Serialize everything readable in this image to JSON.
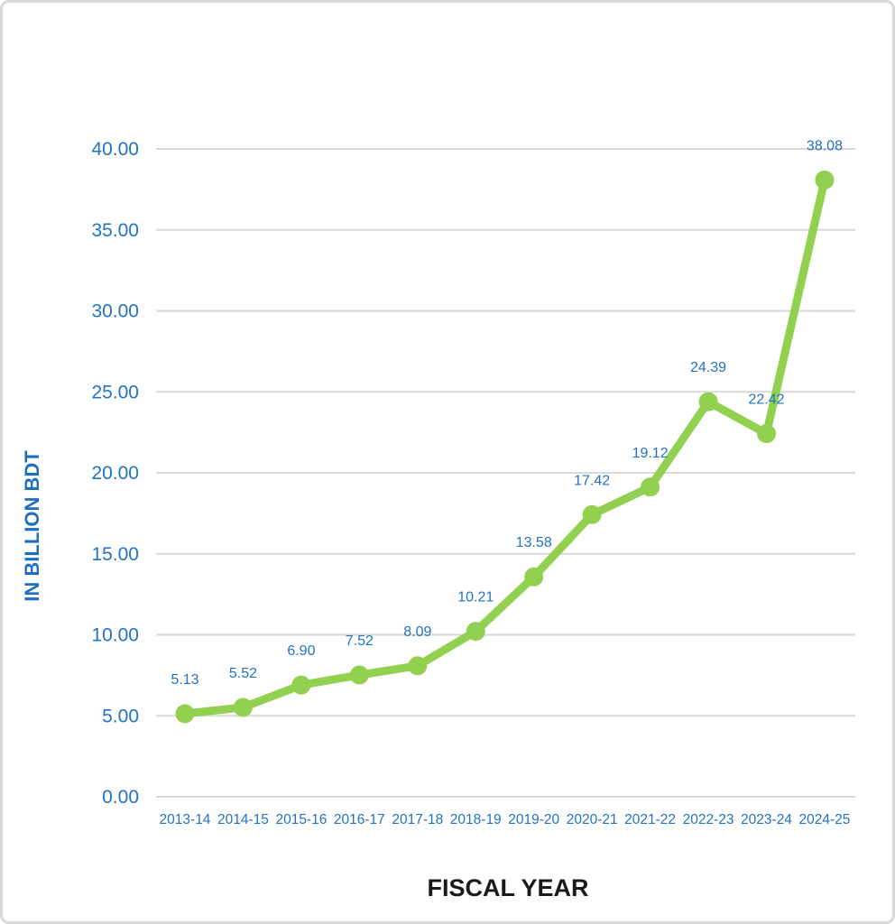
{
  "chart_data": {
    "type": "line",
    "title": "",
    "categories": [
      "2013-14",
      "2014-15",
      "2015-16",
      "2016-17",
      "2017-18",
      "2018-19",
      "2019-20",
      "2020-21",
      "2021-22",
      "2022-23",
      "2023-24",
      "2024-25"
    ],
    "values": [
      5.13,
      5.52,
      6.9,
      7.52,
      8.09,
      10.21,
      13.58,
      17.42,
      19.12,
      24.39,
      22.42,
      38.08
    ],
    "data_labels": [
      "5.13",
      "5.52",
      "6.90",
      "7.52",
      "8.09",
      "10.21",
      "13.58",
      "17.42",
      "19.12",
      "24.39",
      "22.42",
      "38.08"
    ],
    "xlabel": "FISCAL YEAR",
    "ylabel": "IN BILLION BDT",
    "ylim": [
      0,
      40
    ],
    "ytick_step": 5,
    "ytick_labels": [
      "0.00",
      "5.00",
      "10.00",
      "15.00",
      "20.00",
      "25.00",
      "30.00",
      "35.00",
      "40.00"
    ],
    "grid": true,
    "legend": "none",
    "colors": {
      "line": "#92D050",
      "marker": "#92D050",
      "data_label_text": "#2273C3",
      "tick_text": "#2273C3",
      "y_title_text": "#1E6FC0",
      "x_title_text": "#1A1A1A",
      "gridline": "#D9D9D9",
      "frame_border": "#D8D8D8",
      "background": "#FFFFFF"
    }
  }
}
